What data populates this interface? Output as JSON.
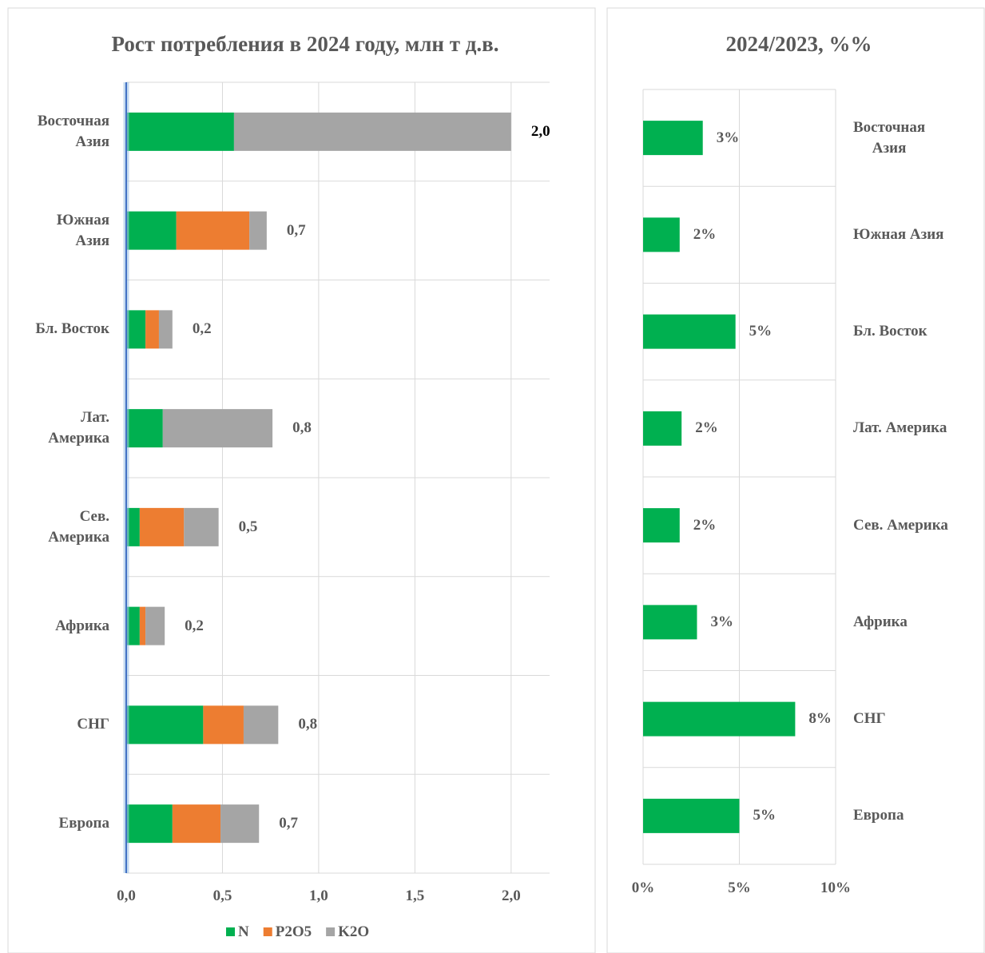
{
  "chart_data": [
    {
      "type": "stacked_bar",
      "title": "Рост потребления в 2024 году, млн т д.в.",
      "categories": [
        "Восточная\nАзия",
        "Южная\nАзия",
        "Бл. Восток",
        "Лат.\nАмерика",
        "Сев.\nАмерика",
        "Африка",
        "СНГ",
        "Европа"
      ],
      "series": [
        {
          "name": "N",
          "color": "#00b050",
          "values": [
            0.56,
            0.26,
            0.1,
            0.19,
            0.07,
            0.07,
            0.4,
            0.24
          ]
        },
        {
          "name": "P2O5",
          "color": "#ed7d31",
          "values": [
            0,
            0.38,
            0.07,
            0,
            0.23,
            0.03,
            0.21,
            0.25
          ]
        },
        {
          "name": "K2O",
          "color": "#a5a5a5",
          "values": [
            1.44,
            0.09,
            0.07,
            0.57,
            0.18,
            0.1,
            0.18,
            0.2
          ]
        }
      ],
      "totals": {
        "values": [
          2.0,
          0.7,
          0.2,
          0.8,
          0.5,
          0.2,
          0.8,
          0.7
        ],
        "value_labels": [
          "2,0",
          "0,7",
          "0,2",
          "0,8",
          "0,5",
          "0,2",
          "0,8",
          "0,7"
        ]
      },
      "xlim": [
        0,
        2.2
      ],
      "xticks": [
        {
          "value": 0,
          "label": "0,0"
        },
        {
          "value": 0.5,
          "label": "0,5"
        },
        {
          "value": 1,
          "label": "1,0"
        },
        {
          "value": 1.5,
          "label": "1,5"
        },
        {
          "value": 2,
          "label": "2,0"
        }
      ],
      "grid": true,
      "legend": "bottom"
    },
    {
      "type": "bar",
      "title": "2024/2023, %%",
      "categories": [
        "Восточная\nАзия",
        "Южная Азия",
        "Бл. Восток",
        "Лат. Америка",
        "Сев. Америка",
        "Африка",
        "СНГ",
        "Европа"
      ],
      "values": [
        3.1,
        1.9,
        4.8,
        2.0,
        1.9,
        2.8,
        7.9,
        5.0
      ],
      "value_labels": [
        "3%",
        "2%",
        "5%",
        "2%",
        "2%",
        "3%",
        "8%",
        "5%"
      ],
      "color": "#00b050",
      "xlim": [
        0,
        10
      ],
      "xticks": [
        {
          "value": 0,
          "label": "0%"
        },
        {
          "value": 5,
          "label": "5%"
        },
        {
          "value": 10,
          "label": "10%"
        }
      ],
      "grid": true
    }
  ]
}
